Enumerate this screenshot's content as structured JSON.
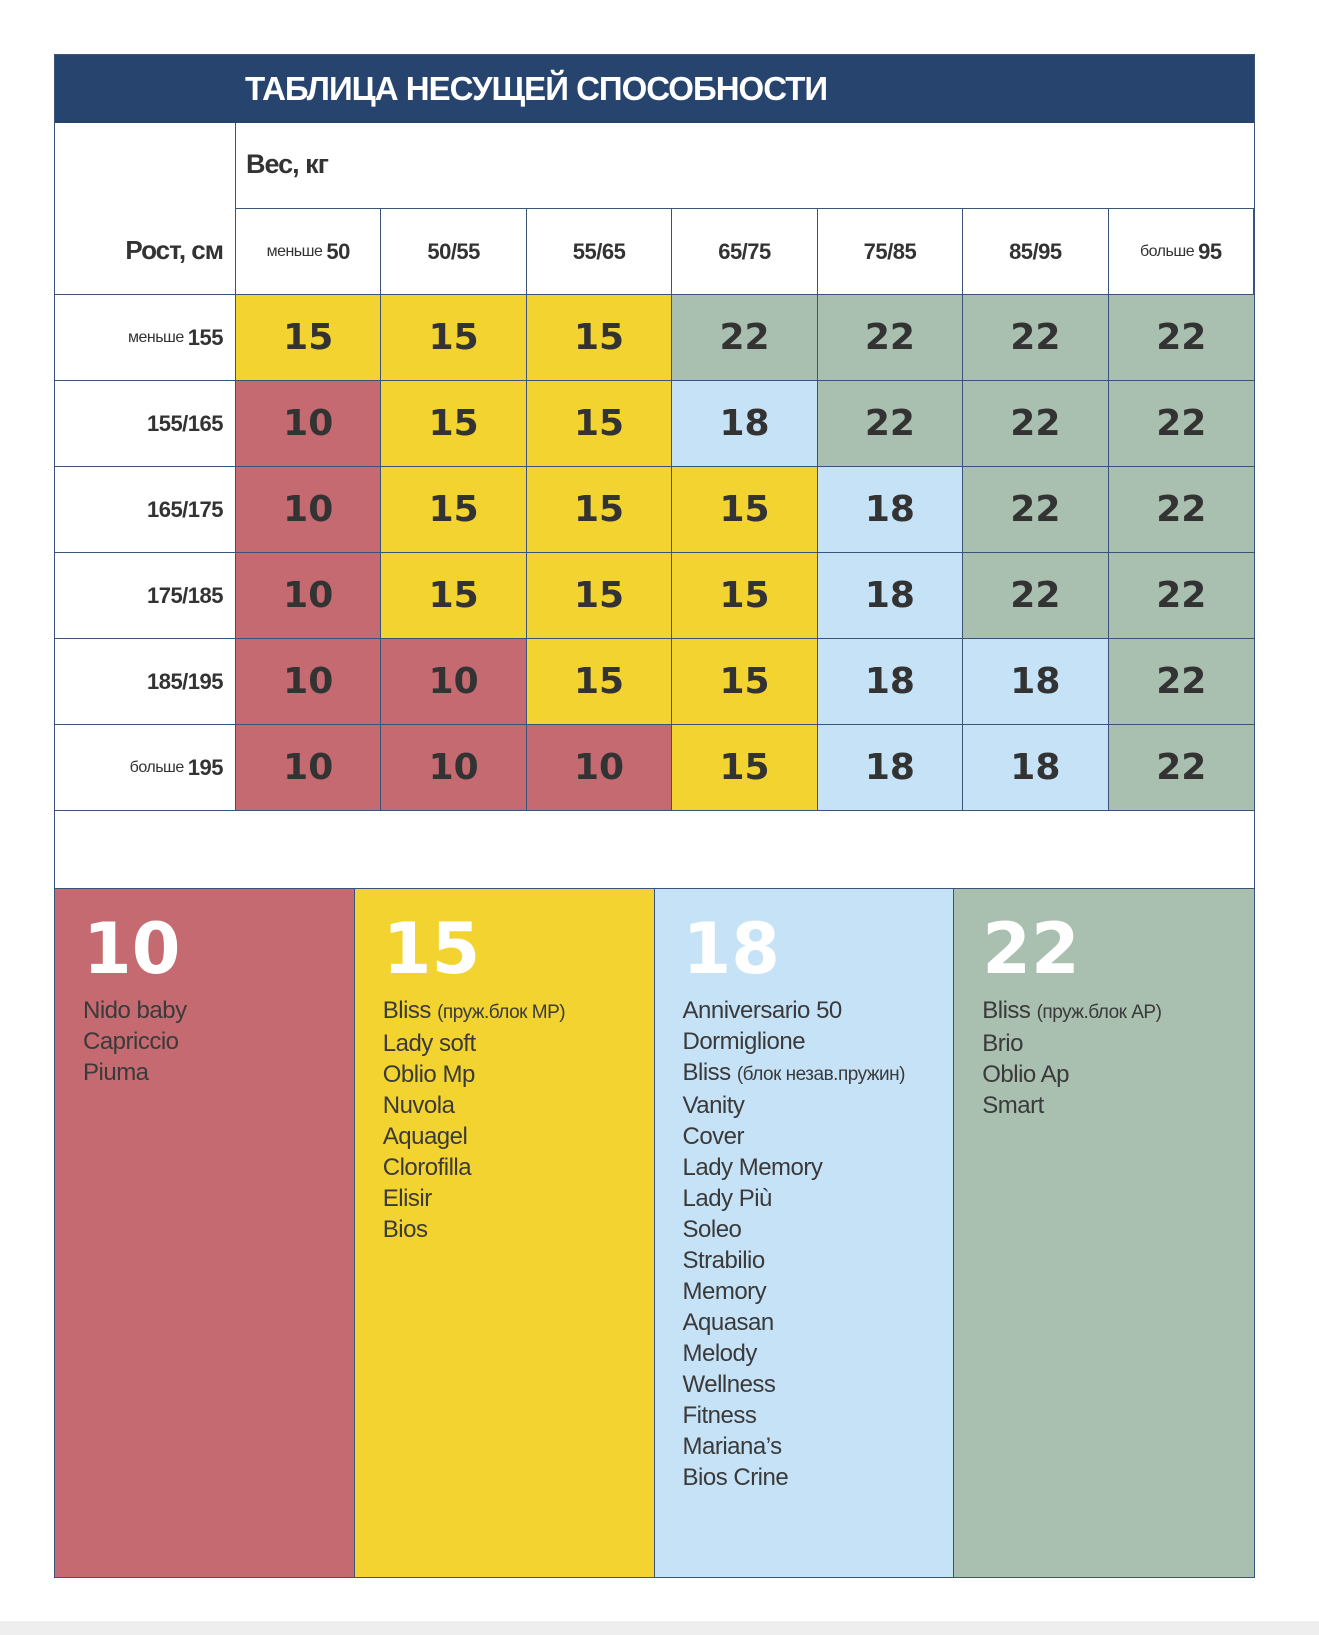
{
  "title": "ТАБЛИЦА НЕСУЩЕЙ СПОСОБНОСТИ",
  "weight_label": "Вес, кг",
  "height_label": "Рост, см",
  "colors": {
    "10": "#c46a70",
    "15": "#f3d330",
    "18": "#c6e2f7",
    "22": "#a9bfaf",
    "header": "#26446e"
  },
  "columns": [
    {
      "prefix": "меньше",
      "value": "50"
    },
    {
      "prefix": "",
      "value": "50/55"
    },
    {
      "prefix": "",
      "value": "55/65"
    },
    {
      "prefix": "",
      "value": "65/75"
    },
    {
      "prefix": "",
      "value": "75/85"
    },
    {
      "prefix": "",
      "value": "85/95"
    },
    {
      "prefix": "больше",
      "value": "95"
    }
  ],
  "rows": [
    {
      "prefix": "меньше",
      "value": "155",
      "cells": [
        "15",
        "15",
        "15",
        "22",
        "22",
        "22",
        "22"
      ]
    },
    {
      "prefix": "",
      "value": "155/165",
      "cells": [
        "10",
        "15",
        "15",
        "18",
        "22",
        "22",
        "22"
      ]
    },
    {
      "prefix": "",
      "value": "165/175",
      "cells": [
        "10",
        "15",
        "15",
        "15",
        "18",
        "22",
        "22"
      ]
    },
    {
      "prefix": "",
      "value": "175/185",
      "cells": [
        "10",
        "15",
        "15",
        "15",
        "18",
        "22",
        "22"
      ]
    },
    {
      "prefix": "",
      "value": "185/195",
      "cells": [
        "10",
        "10",
        "15",
        "15",
        "18",
        "18",
        "22"
      ]
    },
    {
      "prefix": "больше",
      "value": "195",
      "cells": [
        "10",
        "10",
        "10",
        "15",
        "18",
        "18",
        "22"
      ]
    }
  ],
  "legend": [
    {
      "number": "10",
      "items": [
        {
          "name": "Nido baby",
          "note": ""
        },
        {
          "name": "Capriccio",
          "note": ""
        },
        {
          "name": "Piuma",
          "note": ""
        }
      ]
    },
    {
      "number": "15",
      "items": [
        {
          "name": "Bliss",
          "note": "(пруж.блок MP)"
        },
        {
          "name": "Lady soft",
          "note": ""
        },
        {
          "name": "Oblio Mp",
          "note": ""
        },
        {
          "name": "Nuvola",
          "note": ""
        },
        {
          "name": "Aquagel",
          "note": ""
        },
        {
          "name": "Clorofilla",
          "note": ""
        },
        {
          "name": "Elisir",
          "note": ""
        },
        {
          "name": "Bios",
          "note": ""
        }
      ]
    },
    {
      "number": "18",
      "items": [
        {
          "name": "Anniversario 50",
          "note": ""
        },
        {
          "name": "Dormiglione",
          "note": ""
        },
        {
          "name": "Bliss",
          "note": "(блок незав.пружин)"
        },
        {
          "name": "Vanity",
          "note": ""
        },
        {
          "name": "Cover",
          "note": ""
        },
        {
          "name": "Lady Memory",
          "note": ""
        },
        {
          "name": "Lady Più",
          "note": ""
        },
        {
          "name": "Soleo",
          "note": ""
        },
        {
          "name": "Strabilio",
          "note": ""
        },
        {
          "name": "Memory",
          "note": ""
        },
        {
          "name": "Aquasan",
          "note": ""
        },
        {
          "name": "Melody",
          "note": ""
        },
        {
          "name": "Wellness",
          "note": ""
        },
        {
          "name": "Fitness",
          "note": ""
        },
        {
          "name": "Mariana’s",
          "note": ""
        },
        {
          "name": "Bios Crine",
          "note": ""
        }
      ]
    },
    {
      "number": "22",
      "items": [
        {
          "name": "Bliss",
          "note": "(пруж.блок AP)"
        },
        {
          "name": "Brio",
          "note": ""
        },
        {
          "name": "Oblio Ap",
          "note": ""
        },
        {
          "name": "Smart",
          "note": ""
        }
      ]
    }
  ]
}
